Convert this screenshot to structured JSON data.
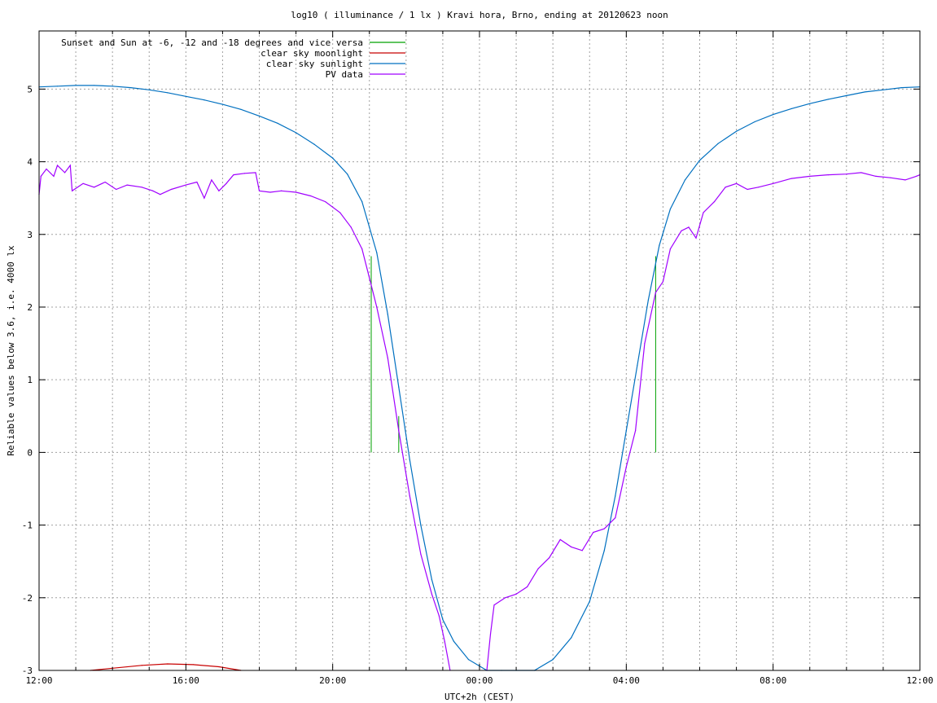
{
  "chart_data": {
    "type": "line",
    "title": "log10 ( illuminance / 1 lx ) Kravi hora, Brno, ending at 20120623 noon",
    "xlabel": "UTC+2h (CEST)",
    "ylabel": "Reliable values below 3.6, i.e. 4000 lx",
    "xlim": [
      12,
      36
    ],
    "ylim": [
      -3,
      5.8
    ],
    "x_tick_labels": [
      {
        "x": 12,
        "label": "12:00"
      },
      {
        "x": 16,
        "label": "16:00"
      },
      {
        "x": 20,
        "label": "20:00"
      },
      {
        "x": 24,
        "label": "00:00"
      },
      {
        "x": 28,
        "label": "04:00"
      },
      {
        "x": 32,
        "label": "08:00"
      },
      {
        "x": 36,
        "label": "12:00"
      }
    ],
    "y_ticks": [
      -3,
      -2,
      -1,
      0,
      1,
      2,
      3,
      4,
      5
    ],
    "grid": true,
    "legend_position": "top-left",
    "series": [
      {
        "name": "Sunset and Sun at -6, -12 and -18 degrees and vice versa",
        "color": "#00a000",
        "style": "impulses",
        "points": [
          [
            21.05,
            2.7
          ],
          [
            21.8,
            0.5
          ],
          [
            22.75,
            0.0
          ],
          [
            27.05,
            0.0
          ],
          [
            28.8,
            2.7
          ]
        ],
        "baseline_note": "vertical markers"
      },
      {
        "name": "clear sky moonlight",
        "color": "#c80000",
        "points": [
          [
            13.4,
            -3.0
          ],
          [
            14.0,
            -2.97
          ],
          [
            14.8,
            -2.93
          ],
          [
            15.5,
            -2.91
          ],
          [
            16.2,
            -2.92
          ],
          [
            16.9,
            -2.95
          ],
          [
            17.5,
            -3.0
          ]
        ]
      },
      {
        "name": "clear sky sunlight",
        "color": "#0070c0",
        "points": [
          [
            12.0,
            5.03
          ],
          [
            12.5,
            5.04
          ],
          [
            13.0,
            5.05
          ],
          [
            13.5,
            5.05
          ],
          [
            14.0,
            5.04
          ],
          [
            14.5,
            5.02
          ],
          [
            15.0,
            4.99
          ],
          [
            15.5,
            4.95
          ],
          [
            16.0,
            4.9
          ],
          [
            16.5,
            4.85
          ],
          [
            17.0,
            4.79
          ],
          [
            17.5,
            4.72
          ],
          [
            18.0,
            4.63
          ],
          [
            18.5,
            4.53
          ],
          [
            19.0,
            4.4
          ],
          [
            19.5,
            4.24
          ],
          [
            20.0,
            4.05
          ],
          [
            20.4,
            3.83
          ],
          [
            20.8,
            3.45
          ],
          [
            21.2,
            2.75
          ],
          [
            21.5,
            1.9
          ],
          [
            21.8,
            0.9
          ],
          [
            22.1,
            -0.1
          ],
          [
            22.4,
            -1.0
          ],
          [
            22.7,
            -1.75
          ],
          [
            23.0,
            -2.3
          ],
          [
            23.3,
            -2.6
          ],
          [
            23.7,
            -2.85
          ],
          [
            24.2,
            -3.0
          ],
          [
            24.6,
            -3.05
          ],
          [
            25.0,
            -3.05
          ],
          [
            25.5,
            -3.0
          ],
          [
            26.0,
            -2.85
          ],
          [
            26.5,
            -2.55
          ],
          [
            27.0,
            -2.05
          ],
          [
            27.4,
            -1.35
          ],
          [
            27.7,
            -0.6
          ],
          [
            28.0,
            0.3
          ],
          [
            28.3,
            1.2
          ],
          [
            28.6,
            2.1
          ],
          [
            28.9,
            2.85
          ],
          [
            29.2,
            3.35
          ],
          [
            29.6,
            3.75
          ],
          [
            30.0,
            4.02
          ],
          [
            30.5,
            4.25
          ],
          [
            31.0,
            4.42
          ],
          [
            31.5,
            4.55
          ],
          [
            32.0,
            4.65
          ],
          [
            32.5,
            4.73
          ],
          [
            33.0,
            4.8
          ],
          [
            33.5,
            4.86
          ],
          [
            34.0,
            4.91
          ],
          [
            34.5,
            4.96
          ],
          [
            35.0,
            4.99
          ],
          [
            35.5,
            5.02
          ],
          [
            36.0,
            5.03
          ]
        ]
      },
      {
        "name": "PV data",
        "color": "#a000ff",
        "points": [
          [
            12.0,
            3.55
          ],
          [
            12.05,
            3.8
          ],
          [
            12.2,
            3.9
          ],
          [
            12.4,
            3.8
          ],
          [
            12.5,
            3.95
          ],
          [
            12.7,
            3.85
          ],
          [
            12.85,
            3.95
          ],
          [
            12.9,
            3.6
          ],
          [
            13.2,
            3.7
          ],
          [
            13.5,
            3.65
          ],
          [
            13.8,
            3.72
          ],
          [
            14.1,
            3.62
          ],
          [
            14.4,
            3.68
          ],
          [
            14.8,
            3.65
          ],
          [
            15.1,
            3.6
          ],
          [
            15.3,
            3.55
          ],
          [
            15.6,
            3.62
          ],
          [
            16.0,
            3.68
          ],
          [
            16.3,
            3.72
          ],
          [
            16.5,
            3.5
          ],
          [
            16.7,
            3.75
          ],
          [
            16.9,
            3.6
          ],
          [
            17.1,
            3.7
          ],
          [
            17.3,
            3.82
          ],
          [
            17.6,
            3.84
          ],
          [
            17.9,
            3.85
          ],
          [
            18.0,
            3.6
          ],
          [
            18.3,
            3.58
          ],
          [
            18.6,
            3.6
          ],
          [
            19.0,
            3.58
          ],
          [
            19.4,
            3.53
          ],
          [
            19.8,
            3.45
          ],
          [
            20.2,
            3.3
          ],
          [
            20.5,
            3.1
          ],
          [
            20.8,
            2.8
          ],
          [
            21.0,
            2.4
          ],
          [
            21.2,
            2.0
          ],
          [
            21.5,
            1.3
          ],
          [
            21.8,
            0.3
          ],
          [
            22.1,
            -0.6
          ],
          [
            22.4,
            -1.4
          ],
          [
            22.7,
            -1.95
          ],
          [
            22.9,
            -2.25
          ],
          [
            23.05,
            -2.6
          ],
          [
            23.2,
            -3.0
          ],
          null,
          [
            24.2,
            -3.0
          ],
          [
            24.3,
            -2.5
          ],
          [
            24.4,
            -2.1
          ],
          [
            24.7,
            -2.0
          ],
          [
            25.0,
            -1.95
          ],
          [
            25.3,
            -1.85
          ],
          [
            25.6,
            -1.6
          ],
          [
            25.9,
            -1.45
          ],
          [
            26.2,
            -1.2
          ],
          [
            26.5,
            -1.3
          ],
          [
            26.8,
            -1.35
          ],
          [
            27.1,
            -1.1
          ],
          [
            27.4,
            -1.05
          ],
          [
            27.7,
            -0.9
          ],
          [
            28.0,
            -0.2
          ],
          [
            28.25,
            0.3
          ],
          [
            28.5,
            1.5
          ],
          [
            28.8,
            2.2
          ],
          [
            29.0,
            2.35
          ],
          [
            29.2,
            2.8
          ],
          [
            29.5,
            3.05
          ],
          [
            29.7,
            3.1
          ],
          [
            29.9,
            2.95
          ],
          [
            30.1,
            3.3
          ],
          [
            30.4,
            3.45
          ],
          [
            30.7,
            3.65
          ],
          [
            31.0,
            3.7
          ],
          [
            31.3,
            3.62
          ],
          [
            31.6,
            3.65
          ],
          [
            32.0,
            3.7
          ],
          [
            32.5,
            3.77
          ],
          [
            33.0,
            3.8
          ],
          [
            33.5,
            3.82
          ],
          [
            34.0,
            3.83
          ],
          [
            34.4,
            3.85
          ],
          [
            34.8,
            3.8
          ],
          [
            35.2,
            3.78
          ],
          [
            35.6,
            3.75
          ],
          [
            35.9,
            3.8
          ],
          [
            36.0,
            3.82
          ]
        ]
      }
    ]
  }
}
